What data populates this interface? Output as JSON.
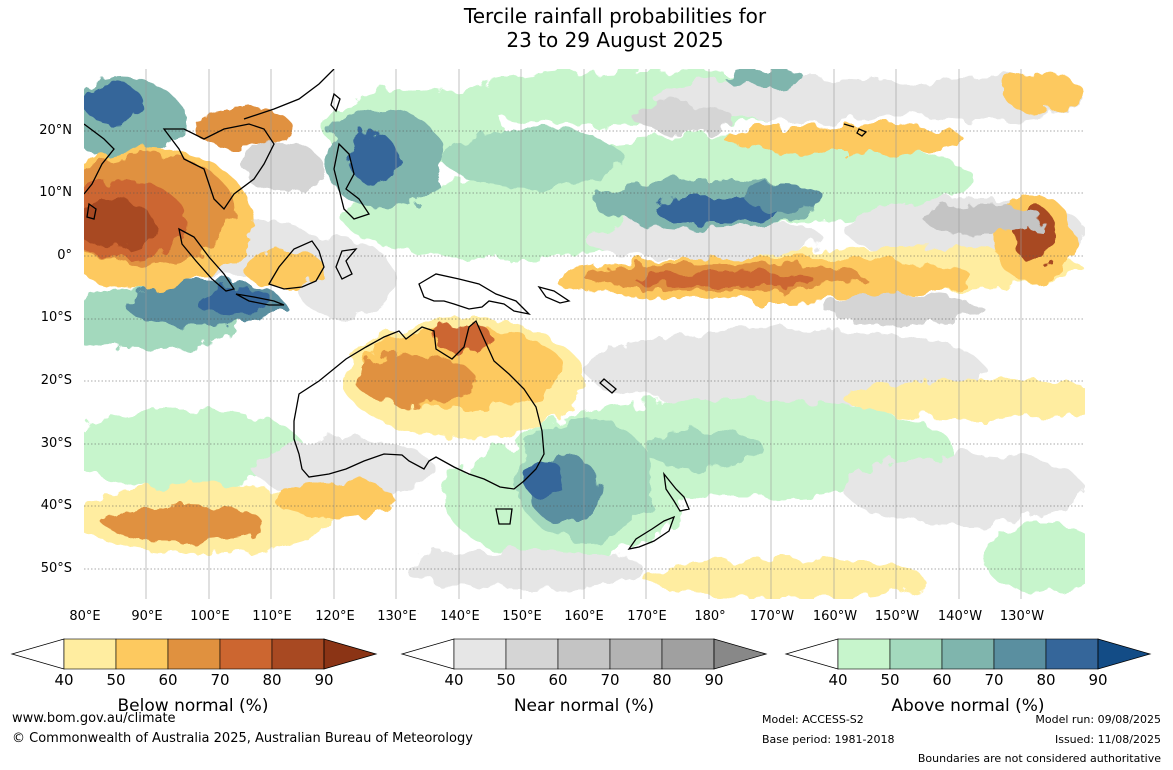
{
  "title_line1": "Tercile rainfall probabilities for",
  "title_line2": "23 to 29 August 2025",
  "latitude_labels": [
    "20°N",
    "10°N",
    "0°",
    "10°S",
    "20°S",
    "30°S",
    "40°S",
    "50°S"
  ],
  "longitude_labels": [
    "80°E",
    "90°E",
    "100°E",
    "110°E",
    "120°E",
    "130°E",
    "140°E",
    "150°E",
    "160°E",
    "170°E",
    "180°",
    "170°W",
    "160°W",
    "150°W",
    "140°W",
    "130°W"
  ],
  "colorbars": [
    {
      "name": "below",
      "label": "Below normal (%)",
      "ticks": [
        "40",
        "50",
        "60",
        "70",
        "80",
        "90"
      ],
      "colors": [
        "#ffeda0",
        "#fdc95f",
        "#e0913f",
        "#cc6630",
        "#a84922",
        "#8b3415"
      ]
    },
    {
      "name": "near",
      "label": "Near normal (%)",
      "ticks": [
        "40",
        "50",
        "60",
        "70",
        "80",
        "90"
      ],
      "colors": [
        "#e6e6e6",
        "#d5d5d5",
        "#c4c4c4",
        "#b3b3b3",
        "#a0a0a0",
        "#888888"
      ]
    },
    {
      "name": "above",
      "label": "Above normal (%)",
      "ticks": [
        "40",
        "50",
        "60",
        "70",
        "80",
        "90"
      ],
      "colors": [
        "#c7f5cc",
        "#a3d9bd",
        "#7fb5ad",
        "#5a8fa0",
        "#35669a",
        "#134c86"
      ]
    }
  ],
  "footer": {
    "website": "www.bom.gov.au/climate",
    "copyright": "© Commonwealth of Australia 2025, Australian Bureau of Meteorology",
    "model": "Model: ACCESS-S2",
    "base_period": "Base period: 1981-2018",
    "model_run": "Model run: 09/08/2025",
    "issued": "Issued: 11/08/2025",
    "disclaimer": "Boundaries are not considered authoritative"
  }
}
